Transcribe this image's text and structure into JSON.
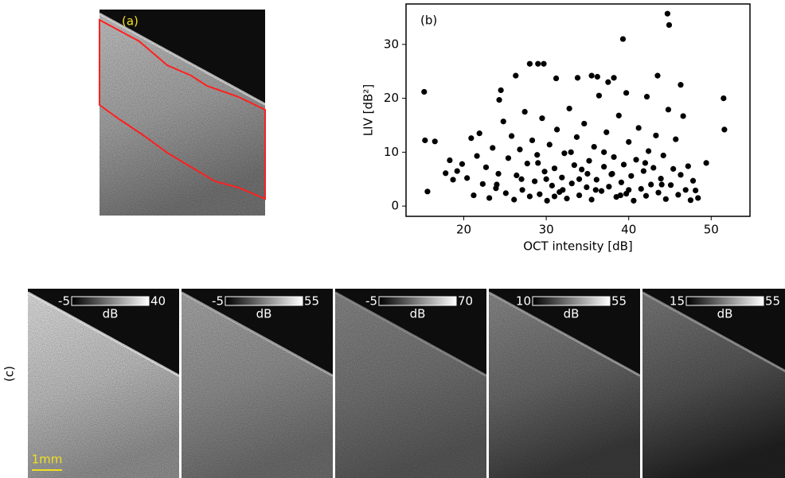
{
  "chart_data": [
    {
      "type": "image",
      "label": "(a)",
      "outline_color": "#ff2020",
      "label_color": "#f0e020"
    },
    {
      "type": "scatter",
      "label": "(b)",
      "xlabel": "OCT intensity [dB]",
      "ylabel": "LIV [dB²]",
      "color": "#000000",
      "xlim": [
        13,
        54.7
      ],
      "ylim": [
        -1.9,
        37.5
      ],
      "xticks": [
        20,
        30,
        40,
        50
      ],
      "yticks": [
        0,
        10,
        20,
        30
      ],
      "x": [
        15.2,
        15.3,
        15.6,
        16.5,
        44.7,
        44.9,
        39.3,
        51.5,
        51.6,
        49.4,
        28,
        29,
        29.7,
        24.5,
        24.3,
        26.3,
        46.3,
        43.5,
        33.8,
        35.5,
        36.2,
        37.5,
        38.2,
        42.2,
        39.7,
        31.2,
        17.8,
        18.3,
        18.7,
        19.2,
        19.8,
        20.4,
        20.9,
        21.2,
        21.6,
        21.9,
        22.3,
        22.7,
        23.1,
        23.5,
        23.9,
        24.2,
        24.8,
        25.1,
        25.4,
        25.8,
        26.1,
        26.4,
        26.8,
        27.1,
        27.4,
        27.7,
        28.0,
        28.3,
        28.6,
        28.9,
        29.2,
        29.5,
        29.8,
        30.1,
        30.4,
        30.7,
        31.0,
        31.3,
        31.6,
        31.9,
        32.2,
        32.5,
        32.8,
        33.1,
        33.4,
        33.7,
        34.0,
        34.3,
        34.6,
        34.9,
        35.2,
        35.5,
        35.8,
        36.1,
        36.4,
        36.7,
        37.0,
        37.3,
        37.6,
        37.9,
        38.2,
        38.5,
        38.8,
        39.1,
        39.4,
        39.7,
        40.0,
        40.3,
        40.6,
        40.9,
        41.2,
        41.5,
        41.8,
        42.1,
        42.4,
        42.7,
        43.0,
        43.3,
        43.6,
        43.9,
        44.2,
        44.5,
        44.8,
        45.1,
        45.4,
        45.7,
        46.0,
        46.3,
        46.6,
        46.9,
        47.2,
        47.5,
        47.8,
        48.1,
        48.4,
        30.0,
        34,
        36,
        38,
        32,
        40,
        27,
        24,
        33,
        37,
        42,
        35,
        29,
        31,
        39,
        44
      ],
      "y": [
        21.2,
        12.2,
        2.7,
        12,
        35.7,
        33.6,
        31,
        20,
        14.2,
        8,
        26.4,
        26.4,
        26.4,
        21.5,
        19.7,
        24.2,
        22.5,
        24.2,
        23.8,
        24.2,
        24,
        23,
        23.8,
        20.3,
        21,
        23.7,
        6.1,
        8.5,
        4.9,
        6.5,
        7.8,
        5.2,
        12.6,
        2,
        9.3,
        13.5,
        4.1,
        7.2,
        1.5,
        10.8,
        3.3,
        6,
        15.7,
        2.4,
        8.9,
        13,
        1.2,
        5.7,
        10.5,
        3,
        17.5,
        7.9,
        1.8,
        12.2,
        4.6,
        9.5,
        2.2,
        16.3,
        6.4,
        1,
        11.4,
        3.8,
        7,
        14.2,
        2.6,
        5.3,
        9.8,
        1.4,
        18.1,
        4.2,
        7.6,
        12.8,
        2,
        6.8,
        15.3,
        3.5,
        8.4,
        1.2,
        11,
        4.9,
        20.5,
        2.8,
        7.3,
        13.7,
        3.6,
        5.9,
        9.1,
        1.7,
        16.8,
        4.4,
        7.7,
        2.3,
        11.9,
        5.6,
        1,
        8.6,
        14.5,
        3.2,
        6.5,
        1.9,
        10.2,
        4,
        7.1,
        13.1,
        2.5,
        5.1,
        9.4,
        1.3,
        17.9,
        3.9,
        6.9,
        12.4,
        2.1,
        5.8,
        16.7,
        3,
        7.4,
        1.1,
        4.7,
        2.9,
        1.5,
        5,
        5,
        3,
        6,
        3,
        3,
        5,
        4,
        10,
        10,
        8,
        6,
        8,
        1.8,
        2,
        4
      ]
    },
    {
      "type": "image-row",
      "label": "(c)",
      "scale_bar": "1mm",
      "scale_color": "#f0e020",
      "panels": [
        {
          "min": -5,
          "max": 40,
          "unit": "dB"
        },
        {
          "min": -5,
          "max": 55,
          "unit": "dB"
        },
        {
          "min": -5,
          "max": 70,
          "unit": "dB"
        },
        {
          "min": 10,
          "max": 55,
          "unit": "dB"
        },
        {
          "min": 15,
          "max": 55,
          "unit": "dB"
        }
      ]
    }
  ]
}
